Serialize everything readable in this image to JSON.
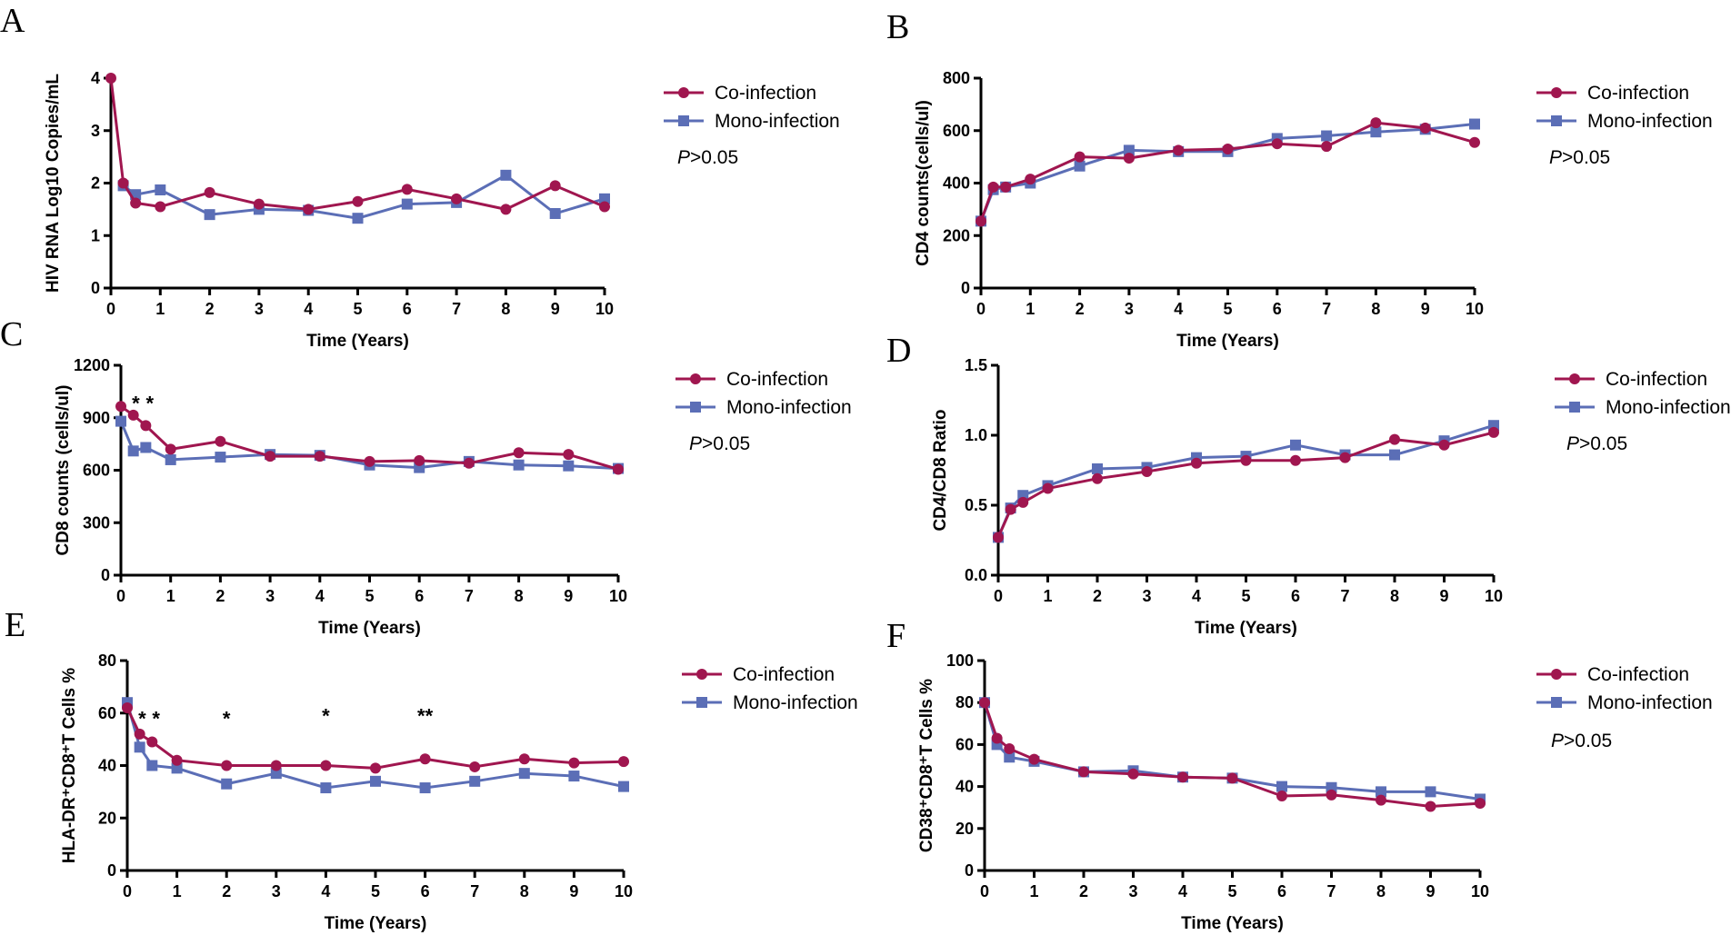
{
  "colors": {
    "co": "#a0164f",
    "mono": "#5b6eb6"
  },
  "chart_data": [
    {
      "type": "line",
      "panel": "A",
      "ylabel": "HIV RNA Log10 Copies/mL",
      "xlabel": "Time (Years)",
      "ylim": [
        0,
        4
      ],
      "yticks": [
        0,
        1,
        2,
        3,
        4
      ],
      "ytick_labels": [
        "0",
        "1",
        "2",
        "3",
        "4"
      ],
      "xlim": [
        0,
        10
      ],
      "xticks": [
        0,
        1,
        2,
        3,
        4,
        5,
        6,
        7,
        8,
        9,
        10
      ],
      "xtick_labels": [
        "0",
        "1",
        "2",
        "3",
        "4",
        "5",
        "6",
        "7",
        "8",
        "9",
        "10"
      ],
      "legend": [
        "Co-infection",
        "Mono-infection"
      ],
      "pvalue": "P>0.05",
      "series": [
        {
          "name": "Co-infection",
          "x": [
            0,
            0.25,
            0.5,
            1,
            2,
            3,
            4,
            5,
            6,
            7,
            8,
            9,
            10
          ],
          "values": [
            4.0,
            2.0,
            1.62,
            1.55,
            1.82,
            1.6,
            1.5,
            1.65,
            1.88,
            1.7,
            1.5,
            1.95,
            1.55
          ]
        },
        {
          "name": "Mono-infection",
          "x": [
            0.25,
            0.5,
            1,
            2,
            3,
            4,
            5,
            6,
            7,
            8,
            9,
            10
          ],
          "values": [
            1.95,
            1.78,
            1.87,
            1.4,
            1.5,
            1.48,
            1.33,
            1.6,
            1.63,
            2.15,
            1.42,
            1.7
          ]
        }
      ],
      "sig": []
    },
    {
      "type": "line",
      "panel": "B",
      "ylabel": "CD4 counts(cells/ul)",
      "xlabel": "Time (Years)",
      "ylim": [
        0,
        800
      ],
      "yticks": [
        0,
        200,
        400,
        600,
        800
      ],
      "ytick_labels": [
        "0",
        "200",
        "400",
        "600",
        "800"
      ],
      "xlim": [
        0,
        10
      ],
      "xticks": [
        0,
        1,
        2,
        3,
        4,
        5,
        6,
        7,
        8,
        9,
        10
      ],
      "xtick_labels": [
        "0",
        "1",
        "2",
        "3",
        "4",
        "5",
        "6",
        "7",
        "8",
        "9",
        "10"
      ],
      "legend": [
        "Co-infection",
        "Mono-infection"
      ],
      "pvalue": "P>0.05",
      "series": [
        {
          "name": "Co-infection",
          "x": [
            0,
            0.25,
            0.5,
            1,
            2,
            3,
            4,
            5,
            6,
            7,
            8,
            9,
            10
          ],
          "values": [
            255,
            385,
            385,
            415,
            500,
            495,
            525,
            530,
            550,
            540,
            630,
            610,
            555
          ]
        },
        {
          "name": "Mono-infection",
          "x": [
            0,
            0.25,
            0.5,
            1,
            2,
            3,
            4,
            5,
            6,
            7,
            8,
            9,
            10
          ],
          "values": [
            255,
            375,
            385,
            400,
            465,
            525,
            520,
            520,
            570,
            580,
            595,
            605,
            625
          ]
        }
      ],
      "sig": []
    },
    {
      "type": "line",
      "panel": "C",
      "ylabel": "CD8 counts (cells/ul)",
      "xlabel": "Time (Years)",
      "ylim": [
        0,
        1200
      ],
      "yticks": [
        0,
        300,
        600,
        900,
        1200
      ],
      "ytick_labels": [
        "0",
        "300",
        "600",
        "900",
        "1200"
      ],
      "xlim": [
        0,
        10
      ],
      "xticks": [
        0,
        1,
        2,
        3,
        4,
        5,
        6,
        7,
        8,
        9,
        10
      ],
      "xtick_labels": [
        "0",
        "1",
        "2",
        "3",
        "4",
        "5",
        "6",
        "7",
        "8",
        "9",
        "10"
      ],
      "legend": [
        "Co-infection",
        "Mono-infection"
      ],
      "pvalue": "P>0.05",
      "series": [
        {
          "name": "Co-infection",
          "x": [
            0,
            0.25,
            0.5,
            1,
            2,
            3,
            4,
            5,
            6,
            7,
            8,
            9,
            10
          ],
          "values": [
            965,
            915,
            855,
            720,
            765,
            680,
            680,
            650,
            655,
            640,
            700,
            690,
            605
          ]
        },
        {
          "name": "Mono-infection",
          "x": [
            0,
            0.25,
            0.5,
            1,
            2,
            3,
            4,
            5,
            6,
            7,
            8,
            9,
            10
          ],
          "values": [
            880,
            710,
            730,
            660,
            675,
            690,
            685,
            630,
            615,
            650,
            630,
            625,
            610
          ]
        }
      ],
      "sig": [
        {
          "x": 0.3,
          "y": 985,
          "text": "*"
        },
        {
          "x": 0.58,
          "y": 985,
          "text": "*"
        }
      ]
    },
    {
      "type": "line",
      "panel": "D",
      "ylabel": "CD4/CD8 Ratio",
      "xlabel": "Time (Years)",
      "ylim": [
        0,
        1.5
      ],
      "yticks": [
        0,
        0.5,
        1.0,
        1.5
      ],
      "ytick_labels": [
        "0.0",
        "0.5",
        "1.0",
        "1.5"
      ],
      "xlim": [
        0,
        10
      ],
      "xticks": [
        0,
        1,
        2,
        3,
        4,
        5,
        6,
        7,
        8,
        9,
        10
      ],
      "xtick_labels": [
        "0",
        "1",
        "2",
        "3",
        "4",
        "5",
        "6",
        "7",
        "8",
        "9",
        "10"
      ],
      "legend": [
        "Co-infection",
        "Mono-infection"
      ],
      "pvalue": "P>0.05",
      "series": [
        {
          "name": "Co-infection",
          "x": [
            0,
            0.25,
            0.5,
            1,
            2,
            3,
            4,
            5,
            6,
            7,
            8,
            9,
            10
          ],
          "values": [
            0.27,
            0.47,
            0.52,
            0.62,
            0.69,
            0.74,
            0.8,
            0.82,
            0.82,
            0.84,
            0.97,
            0.93,
            1.02
          ]
        },
        {
          "name": "Mono-infection",
          "x": [
            0,
            0.25,
            0.5,
            1,
            2,
            3,
            4,
            5,
            6,
            7,
            8,
            9,
            10
          ],
          "values": [
            0.27,
            0.48,
            0.57,
            0.64,
            0.76,
            0.77,
            0.84,
            0.85,
            0.93,
            0.86,
            0.86,
            0.96,
            1.07
          ]
        }
      ],
      "sig": []
    },
    {
      "type": "line",
      "panel": "E",
      "ylabel": "HLA-DR⁺CD8⁺T Cells %",
      "xlabel": "Time (Years)",
      "ylim": [
        0,
        80
      ],
      "yticks": [
        0,
        20,
        40,
        60,
        80
      ],
      "ytick_labels": [
        "0",
        "20",
        "40",
        "60",
        "80"
      ],
      "xlim": [
        0,
        10
      ],
      "xticks": [
        0,
        1,
        2,
        3,
        4,
        5,
        6,
        7,
        8,
        9,
        10
      ],
      "xtick_labels": [
        "0",
        "1",
        "2",
        "3",
        "4",
        "5",
        "6",
        "7",
        "8",
        "9",
        "10"
      ],
      "legend": [
        "Co-infection",
        "Mono-infection"
      ],
      "pvalue": "",
      "series": [
        {
          "name": "Co-infection",
          "x": [
            0,
            0.25,
            0.5,
            1,
            2,
            3,
            4,
            5,
            6,
            7,
            8,
            9,
            10
          ],
          "values": [
            62,
            52,
            49,
            42,
            40,
            40,
            40,
            39,
            42.5,
            39.5,
            42.5,
            41,
            41.5
          ]
        },
        {
          "name": "Mono-infection",
          "x": [
            0,
            0.25,
            0.5,
            1,
            2,
            3,
            4,
            5,
            6,
            7,
            8,
            9,
            10
          ],
          "values": [
            64,
            47,
            40,
            39,
            33,
            37,
            31.5,
            34,
            31.5,
            34,
            37,
            36,
            32
          ]
        }
      ],
      "sig": [
        {
          "x": 0.3,
          "y": 58,
          "text": "*"
        },
        {
          "x": 0.58,
          "y": 58,
          "text": "*"
        },
        {
          "x": 2,
          "y": 58,
          "text": "*"
        },
        {
          "x": 4,
          "y": 59,
          "text": "*"
        },
        {
          "x": 6,
          "y": 59,
          "text": "**"
        }
      ]
    },
    {
      "type": "line",
      "panel": "F",
      "ylabel": "CD38⁺CD8⁺T Cells %",
      "xlabel": "Time (Years)",
      "ylim": [
        0,
        100
      ],
      "yticks": [
        0,
        20,
        40,
        60,
        80,
        100
      ],
      "ytick_labels": [
        "0",
        "20",
        "40",
        "60",
        "80",
        "100"
      ],
      "xlim": [
        0,
        10
      ],
      "xticks": [
        0,
        1,
        2,
        3,
        4,
        5,
        6,
        7,
        8,
        9,
        10
      ],
      "xtick_labels": [
        "0",
        "1",
        "2",
        "3",
        "4",
        "5",
        "6",
        "7",
        "8",
        "9",
        "10"
      ],
      "legend": [
        "Co-infection",
        "Mono-infection"
      ],
      "pvalue": "P>0.05",
      "series": [
        {
          "name": "Co-infection",
          "x": [
            0,
            0.25,
            0.5,
            1,
            2,
            3,
            4,
            5,
            6,
            7,
            8,
            9,
            10
          ],
          "values": [
            80,
            63,
            58,
            53,
            47,
            46,
            44.5,
            44,
            35.5,
            36,
            33.5,
            30.5,
            32
          ]
        },
        {
          "name": "Mono-infection",
          "x": [
            0,
            0.25,
            0.5,
            1,
            2,
            3,
            4,
            5,
            6,
            7,
            8,
            9,
            10
          ],
          "values": [
            80,
            60,
            54,
            52,
            47,
            47.5,
            44.5,
            44,
            40,
            39.5,
            37.5,
            37.5,
            34
          ]
        }
      ],
      "sig": []
    }
  ]
}
